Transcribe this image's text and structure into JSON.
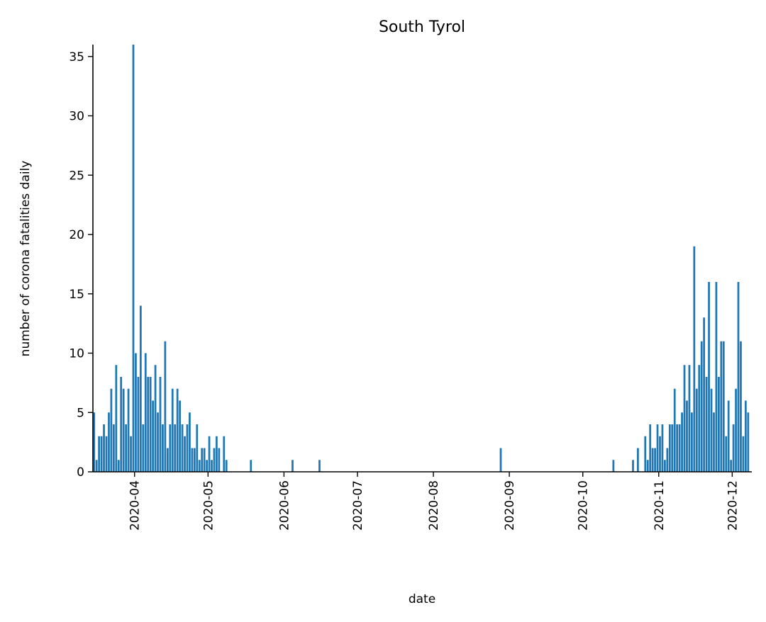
{
  "chart_data": {
    "type": "bar",
    "title": "South Tyrol",
    "xlabel": "date",
    "ylabel": "number of corona fatalities daily",
    "x_axis": "date",
    "xlim": [
      "2020-03-15",
      "2020-12-08"
    ],
    "ylim": [
      0,
      36
    ],
    "yticks": [
      0,
      5,
      10,
      15,
      20,
      25,
      30,
      35
    ],
    "xticks": [
      {
        "date": "2020-04-01",
        "label": "2020-04"
      },
      {
        "date": "2020-05-01",
        "label": "2020-05"
      },
      {
        "date": "2020-06-01",
        "label": "2020-06"
      },
      {
        "date": "2020-07-01",
        "label": "2020-07"
      },
      {
        "date": "2020-08-01",
        "label": "2020-08"
      },
      {
        "date": "2020-09-01",
        "label": "2020-09"
      },
      {
        "date": "2020-10-01",
        "label": "2020-10"
      },
      {
        "date": "2020-11-01",
        "label": "2020-11"
      },
      {
        "date": "2020-12-01",
        "label": "2020-12"
      }
    ],
    "bar_color": "#1f77b4",
    "grid": false,
    "series": [
      {
        "dates": [
          "2020-03-15",
          "2020-03-16",
          "2020-03-17",
          "2020-03-18",
          "2020-03-19",
          "2020-03-20",
          "2020-03-21",
          "2020-03-22",
          "2020-03-23",
          "2020-03-24",
          "2020-03-25",
          "2020-03-26",
          "2020-03-27",
          "2020-03-28",
          "2020-03-29",
          "2020-03-30",
          "2020-03-31",
          "2020-04-01",
          "2020-04-02",
          "2020-04-03",
          "2020-04-04",
          "2020-04-05",
          "2020-04-06",
          "2020-04-07",
          "2020-04-08",
          "2020-04-09",
          "2020-04-10",
          "2020-04-11",
          "2020-04-12",
          "2020-04-13",
          "2020-04-14",
          "2020-04-15",
          "2020-04-16",
          "2020-04-17",
          "2020-04-18",
          "2020-04-19",
          "2020-04-20",
          "2020-04-21",
          "2020-04-22",
          "2020-04-23",
          "2020-04-24",
          "2020-04-25",
          "2020-04-26",
          "2020-04-27",
          "2020-04-28",
          "2020-04-29",
          "2020-04-30",
          "2020-05-01",
          "2020-05-02",
          "2020-05-03",
          "2020-05-04",
          "2020-05-05",
          "2020-05-07",
          "2020-05-08",
          "2020-05-18",
          "2020-06-04",
          "2020-06-15",
          "2020-08-28",
          "2020-10-13",
          "2020-10-21",
          "2020-10-23",
          "2020-10-26",
          "2020-10-27",
          "2020-10-28",
          "2020-10-29",
          "2020-10-30",
          "2020-10-31",
          "2020-11-01",
          "2020-11-02",
          "2020-11-03",
          "2020-11-04",
          "2020-11-05",
          "2020-11-06",
          "2020-11-07",
          "2020-11-08",
          "2020-11-09",
          "2020-11-10",
          "2020-11-11",
          "2020-11-12",
          "2020-11-13",
          "2020-11-14",
          "2020-11-15",
          "2020-11-16",
          "2020-11-17",
          "2020-11-18",
          "2020-11-19",
          "2020-11-20",
          "2020-11-21",
          "2020-11-22",
          "2020-11-23",
          "2020-11-24",
          "2020-11-25",
          "2020-11-26",
          "2020-11-27",
          "2020-11-28",
          "2020-11-29",
          "2020-11-30",
          "2020-12-01",
          "2020-12-02",
          "2020-12-03",
          "2020-12-04",
          "2020-12-05",
          "2020-12-06",
          "2020-12-07"
        ],
        "values": [
          5,
          1,
          3,
          3,
          4,
          3,
          5,
          7,
          4,
          9,
          1,
          8,
          7,
          4,
          7,
          3,
          36,
          10,
          8,
          14,
          4,
          10,
          8,
          8,
          6,
          9,
          5,
          8,
          4,
          11,
          2,
          4,
          7,
          4,
          7,
          6,
          4,
          3,
          4,
          5,
          2,
          2,
          4,
          1,
          2,
          2,
          1,
          3,
          1,
          2,
          3,
          2,
          3,
          1,
          1,
          1,
          1,
          2,
          1,
          1,
          2,
          3,
          1,
          4,
          2,
          2,
          4,
          3,
          4,
          1,
          2,
          4,
          4,
          7,
          4,
          4,
          5,
          9,
          6,
          9,
          5,
          19,
          7,
          9,
          11,
          13,
          8,
          16,
          7,
          5,
          16,
          8,
          11,
          11,
          3,
          6,
          1,
          4,
          7,
          16,
          11,
          3,
          6,
          5
        ]
      }
    ]
  }
}
